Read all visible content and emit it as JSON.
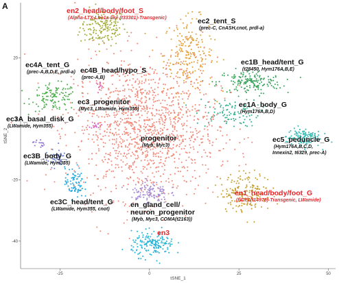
{
  "panel_letter": "A",
  "chart_data": {
    "type": "scatter",
    "xlabel": "tSNE_1",
    "ylabel": "tSNE_2",
    "xlim": [
      -36,
      52
    ],
    "ylim": [
      -49,
      38
    ],
    "xticks": [
      -25,
      0,
      25,
      50
    ],
    "yticks": [
      20,
      0,
      -20,
      -40
    ],
    "grid": false,
    "clusters": [
      {
        "name": "en2_head/body/foot_S",
        "sub": "(Alpha-LTX-Lhe1a-like (t33301)-Transgenic)",
        "color": "#a3ad3a",
        "highlight": true,
        "cx": -13,
        "cy": 30,
        "sx": 3.2,
        "sy": 3.0,
        "n": 170
      },
      {
        "name": "ec2_tent_S",
        "sub": "(prec-C, CnASH,cnot, prdl-a)",
        "color": "#e5a13b",
        "highlight": false,
        "cx": 11,
        "cy": 21,
        "sx": 3.5,
        "sy": 6.0,
        "n": 220
      },
      {
        "name": "ec4A_tent_G",
        "sub": "(prec-A,B,D,E, prdl-a)",
        "color": "#4dae4d",
        "highlight": false,
        "cx": -26.5,
        "cy": 7,
        "sx": 3.2,
        "sy": 2.2,
        "n": 120
      },
      {
        "name": "ec4B_head/hypo_S",
        "sub": "(prec-A,B)",
        "color": "#e06ba8",
        "highlight": false,
        "cx": -14,
        "cy": 11,
        "sx": 0.6,
        "sy": 0.6,
        "n": 14
      },
      {
        "name": "ec1B_head/tent_G",
        "sub": "(t28450, Hym176A,B,E)",
        "color": "#3da760",
        "highlight": false,
        "cx": 28,
        "cy": 12,
        "sx": 4.5,
        "sy": 2.0,
        "n": 170
      },
      {
        "name": "ec3_progenitor",
        "sub": "(Myc3, LWamide, Hym355)",
        "color": "#cf6bd0",
        "highlight": false,
        "cx": -15,
        "cy": -2,
        "sx": 0.7,
        "sy": 0.6,
        "n": 16
      },
      {
        "name": "ec1A_body_G",
        "sub": "(Hym176A,B,D)",
        "color": "#35b08f",
        "highlight": false,
        "cx": 22,
        "cy": 2,
        "sx": 4.5,
        "sy": 2.3,
        "n": 100
      },
      {
        "name": "ec3A_basal_disk_G",
        "sub": "(LWamide, Hym355)",
        "color": "#8d6fd6",
        "highlight": false,
        "cx": -31,
        "cy": -8,
        "sx": 0.8,
        "sy": 0.8,
        "n": 14
      },
      {
        "name": "progenitor",
        "sub": "(Myb, Myc3)",
        "color": "#f08a7a",
        "highlight": false,
        "cx": -1,
        "cy": -3,
        "sx": 10.0,
        "sy": 11.5,
        "n": 1300
      },
      {
        "name": "ec5_peduncle_G",
        "sub": "(Hym176A,B,C,D, Innexin2, t6329, prec-A)",
        "color": "#31bcb6",
        "highlight": false,
        "cx": 43,
        "cy": -6,
        "sx": 2.4,
        "sy": 1.6,
        "n": 110
      },
      {
        "name": "ec3B_body_G",
        "sub": "(LWamide, Hym355)",
        "color": "#6e86d4",
        "highlight": false,
        "cx": -26,
        "cy": -13,
        "sx": 1.6,
        "sy": 1.4,
        "n": 50
      },
      {
        "name": "ec3C_head/tent_G",
        "sub": "(LWamide, Hym355, cnot)",
        "color": "#29a9dc",
        "highlight": false,
        "cx": -21,
        "cy": -21,
        "sx": 1.3,
        "sy": 2.5,
        "n": 80
      },
      {
        "name": "en1_head/body/foot_G",
        "sub": "(NDF1(t14976)-Transgenic, LWamide)",
        "color": "#c9a030",
        "highlight": true,
        "cx": 27,
        "cy": -24,
        "sx": 3.6,
        "sy": 3.2,
        "n": 190
      },
      {
        "name": "en_gland_cell/ neuron_progenitor",
        "sub": "(Myb, Myc3, COMA(t2163))",
        "color": "#a78ed6",
        "highlight": false,
        "cx": 0,
        "cy": -24,
        "sx": 2.6,
        "sy": 1.8,
        "n": 110
      },
      {
        "name": "en3",
        "sub": "",
        "color": "#2ab6d9",
        "highlight": true,
        "cx": 1,
        "cy": -41,
        "sx": 3.0,
        "sy": 2.0,
        "n": 170
      }
    ]
  },
  "labels": [
    {
      "line1": "en2_head/body/foot_S",
      "line2": "",
      "sub": "(Alpha-LTX-Lhe1a-like (t33301)-Transgenic)",
      "highlight": true
    },
    {
      "line1": "ec2_tent_S",
      "line2": "",
      "sub": "(prec-C, CnASH,cnot, prdl-a)",
      "highlight": false
    },
    {
      "line1": "ec4A_tent_G",
      "line2": "",
      "sub": "(prec-A,B,D,E, prdl-a)",
      "highlight": false
    },
    {
      "line1": "ec4B_head/hypo_S",
      "line2": "",
      "sub": "(prec-A,B)",
      "highlight": false
    },
    {
      "line1": "ec1B_head/tent_G",
      "line2": "",
      "sub": "(t28450, Hym176A,B,E)",
      "highlight": false
    },
    {
      "line1": "ec3_progenitor",
      "line2": "",
      "sub": "(Myc3, LWamide, Hym355)",
      "highlight": false
    },
    {
      "line1": "ec1A_body_G",
      "line2": "",
      "sub": "(Hym176A,B,D)",
      "highlight": false
    },
    {
      "line1": "ec3A_basal_disk_G",
      "line2": "",
      "sub": "(LWamide, Hym355)",
      "highlight": false
    },
    {
      "line1": "progenitor",
      "line2": "",
      "sub": "(Myb, Myc3)",
      "highlight": false
    },
    {
      "line1": "ec5_peduncle_G",
      "line2": "",
      "sub": "(Hym176A,B,C,D,",
      "sub2": "Innexin2, t6329, prec-A)",
      "highlight": false
    },
    {
      "line1": "ec3B_body_G",
      "line2": "",
      "sub": "(LWamide, Hym355)",
      "highlight": false
    },
    {
      "line1": "ec3C_head/tent_G",
      "line2": "",
      "sub": "(LWamide, Hym355, cnot)",
      "highlight": false
    },
    {
      "line1": "en1_head/body/foot_G",
      "line2": "",
      "sub": "(NDF1(t14976)-Transgenic, LWamide)",
      "highlight": true
    },
    {
      "line1": "en_gland_cell/",
      "line2": "neuron_progenitor",
      "sub": "(Myb, Myc3, COMA(t2163))",
      "highlight": false
    },
    {
      "line1": "en3",
      "line2": "",
      "sub": "",
      "highlight": true
    }
  ]
}
